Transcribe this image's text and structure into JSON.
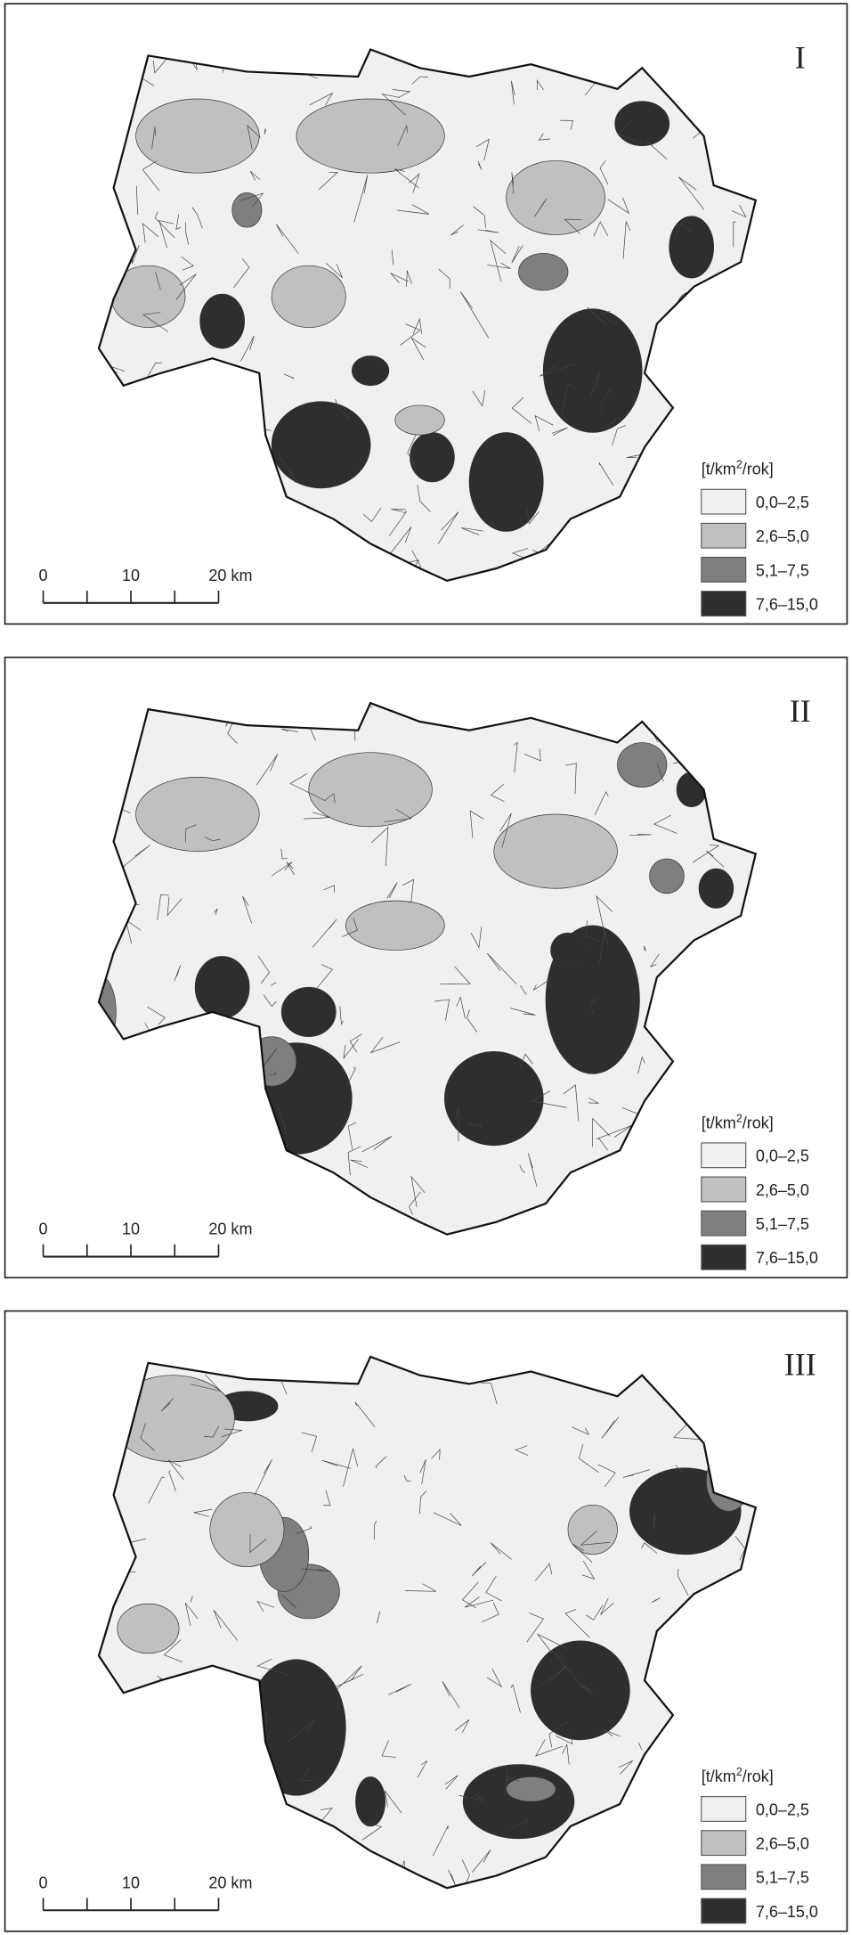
{
  "panels": [
    {
      "label": "I",
      "legend": {
        "title_parts": [
          "[t/km",
          "2",
          "/rok]"
        ],
        "items": [
          {
            "label": "0,0–2,5",
            "color": "#f0f0f0"
          },
          {
            "label": "2,6–5,0",
            "color": "#c0c0c0"
          },
          {
            "label": "5,1–7,5",
            "color": "#7f7f7f"
          },
          {
            "label": "7,6–15,0",
            "color": "#2e2e2e"
          }
        ]
      },
      "scale_labels": [
        "0",
        "10",
        "20 km"
      ]
    },
    {
      "label": "II",
      "legend": {
        "title_parts": [
          "[t/km",
          "2",
          "/rok]"
        ],
        "items": [
          {
            "label": "0,0–2,5",
            "color": "#f0f0f0"
          },
          {
            "label": "2,6–5,0",
            "color": "#c0c0c0"
          },
          {
            "label": "5,1–7,5",
            "color": "#7f7f7f"
          },
          {
            "label": "7,6–15,0",
            "color": "#2e2e2e"
          }
        ]
      },
      "scale_labels": [
        "0",
        "10",
        "20 km"
      ]
    },
    {
      "label": "III",
      "legend": {
        "title_parts": [
          "[t/km",
          "2",
          "/rok]"
        ],
        "items": [
          {
            "label": "0,0–2,5",
            "color": "#f0f0f0"
          },
          {
            "label": "2,6–5,0",
            "color": "#c0c0c0"
          },
          {
            "label": "5,1–7,5",
            "color": "#7f7f7f"
          },
          {
            "label": "7,6–15,0",
            "color": "#2e2e2e"
          }
        ]
      },
      "scale_labels": [
        "0",
        "10",
        "20 km"
      ]
    }
  ]
}
